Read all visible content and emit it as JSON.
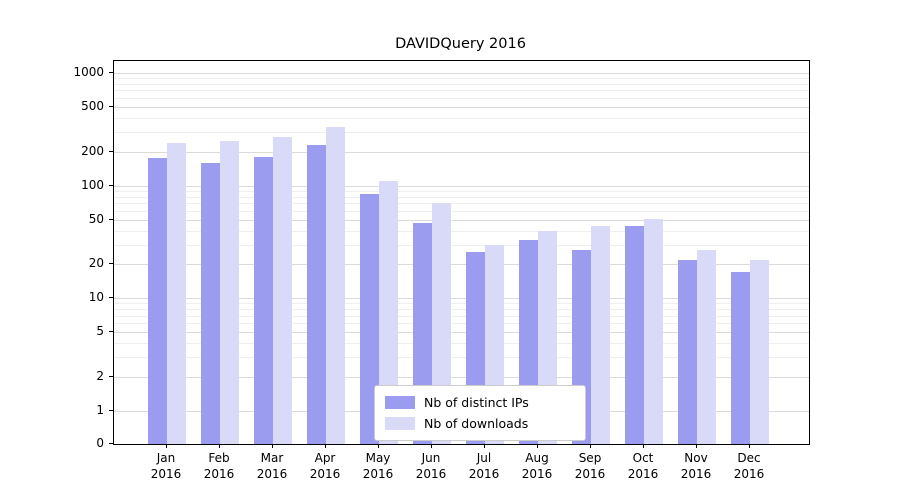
{
  "chart_data": {
    "type": "bar",
    "title": "DAVIDQuery 2016",
    "year_label": "2016",
    "categories": [
      "Jan",
      "Feb",
      "Mar",
      "Apr",
      "May",
      "Jun",
      "Jul",
      "Aug",
      "Sep",
      "Oct",
      "Nov",
      "Dec"
    ],
    "series": [
      {
        "name": "Nb of distinct IPs",
        "color": "#9b9bef",
        "values": [
          175,
          160,
          178,
          230,
          85,
          47,
          26,
          33,
          27,
          44,
          22,
          17
        ]
      },
      {
        "name": "Nb of downloads",
        "color": "#d9d9f8",
        "values": [
          240,
          250,
          270,
          330,
          110,
          70,
          30,
          40,
          44,
          51,
          27,
          22
        ]
      }
    ],
    "y_axis": {
      "scale": "symlog",
      "major_ticks": [
        0,
        1,
        2,
        5,
        10,
        20,
        50,
        100,
        200,
        500,
        1000
      ],
      "minor_ticks": [
        3,
        4,
        6,
        7,
        8,
        9,
        30,
        40,
        60,
        70,
        80,
        90,
        300,
        400,
        600,
        700,
        800,
        900
      ]
    },
    "x_axis": {
      "label": ""
    },
    "legend": {
      "position": "lower-center",
      "border": true
    }
  }
}
